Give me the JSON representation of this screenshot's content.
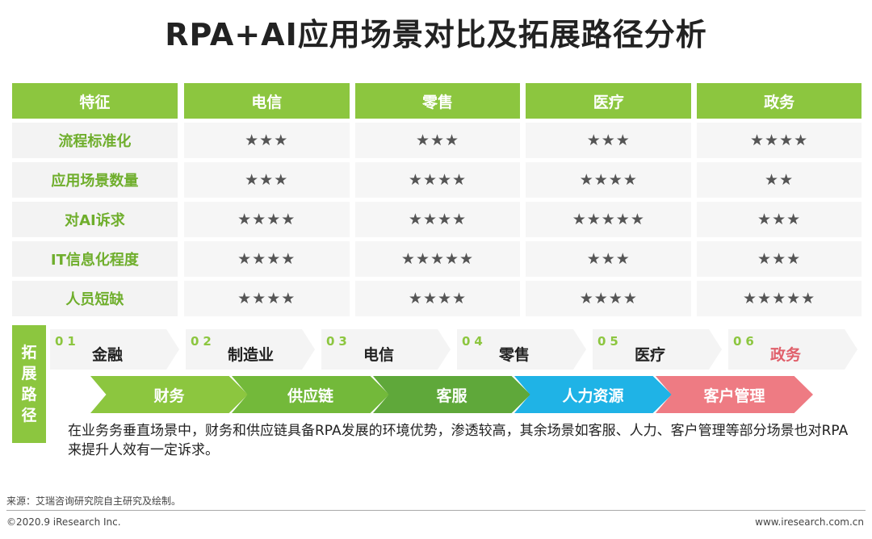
{
  "title": "RPA+AI应用场景对比及拓展路径分析",
  "table": {
    "headers": [
      "特征",
      "电信",
      "零售",
      "医疗",
      "政务"
    ],
    "rows": [
      {
        "feature": "流程标准化",
        "values": [
          "★★★",
          "★★★",
          "★★★",
          "★★★★"
        ]
      },
      {
        "feature": "应用场景数量",
        "values": [
          "★★★",
          "★★★★",
          "★★★★",
          "★★"
        ]
      },
      {
        "feature": "对AI诉求",
        "values": [
          "★★★★",
          "★★★★",
          "★★★★★",
          "★★★"
        ]
      },
      {
        "feature": "IT信息化程度",
        "values": [
          "★★★★",
          "★★★★★",
          "★★★",
          "★★★"
        ]
      },
      {
        "feature": "人员短缺",
        "values": [
          "★★★★",
          "★★★★",
          "★★★★",
          "★★★★★"
        ]
      }
    ]
  },
  "expansion": {
    "side_label": [
      "拓",
      "展",
      "路",
      "径"
    ],
    "steps": [
      {
        "num": "01",
        "label": "金融"
      },
      {
        "num": "02",
        "label": "制造业"
      },
      {
        "num": "03",
        "label": "电信"
      },
      {
        "num": "04",
        "label": "零售"
      },
      {
        "num": "05",
        "label": "医疗"
      },
      {
        "num": "06",
        "label": "政务"
      }
    ],
    "flow": [
      {
        "label": "财务",
        "color": "#8cc63f"
      },
      {
        "label": "供应链",
        "color": "#73b93a"
      },
      {
        "label": "客服",
        "color": "#5fa83a"
      },
      {
        "label": "人力资源",
        "color": "#1fb3e6"
      },
      {
        "label": "客户管理",
        "color": "#ee7b83"
      }
    ],
    "description": "在业务务垂直场景中，财务和供应链具备RPA发展的环境优势，渗透较高，其余场景如客服、人力、客户管理等部分场景也对RPA来提升人效有一定诉求。"
  },
  "footer": {
    "source": "来源：艾瑞咨询研究院自主研究及绘制。",
    "copyright": "©2020.9 iResearch Inc.",
    "website": "www.iresearch.com.cn"
  }
}
